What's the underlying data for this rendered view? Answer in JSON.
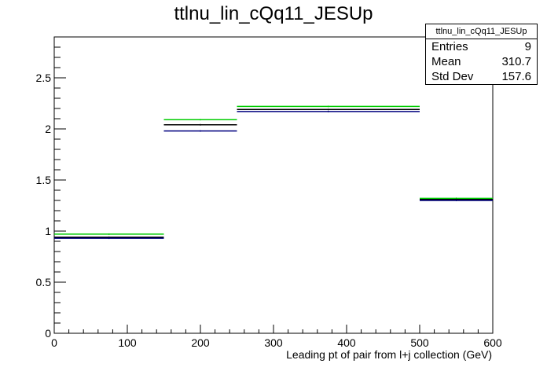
{
  "chart_data": {
    "type": "histogram",
    "title": "ttlnu_lin_cQq11_JESUp",
    "xlabel": "Leading pt of pair from l+j collection (GeV)",
    "ylabel": "",
    "xlim": [
      0,
      600
    ],
    "ylim": [
      0,
      2.9
    ],
    "x_ticks": [
      "0",
      "100",
      "200",
      "300",
      "400",
      "500",
      "600"
    ],
    "y_ticks": [
      "0",
      "0.5",
      "1",
      "1.5",
      "2",
      "2.5"
    ],
    "bin_edges": [
      0,
      150,
      250,
      500,
      600
    ],
    "series": [
      {
        "color": "#00cc00",
        "values": [
          0.97,
          2.09,
          2.22,
          1.32
        ]
      },
      {
        "color": "#000000",
        "values": [
          0.94,
          2.04,
          2.19,
          1.31
        ]
      },
      {
        "color": "#00007f",
        "values": [
          0.93,
          1.98,
          2.17,
          1.3
        ]
      }
    ],
    "grid": false,
    "legend": "none"
  },
  "stats_box": {
    "name": "ttlnu_lin_cQq11_JESUp",
    "rows": [
      {
        "label": "Entries",
        "value": "9"
      },
      {
        "label": "Mean",
        "value": "310.7"
      },
      {
        "label": "Std Dev",
        "value": "157.6"
      }
    ]
  }
}
